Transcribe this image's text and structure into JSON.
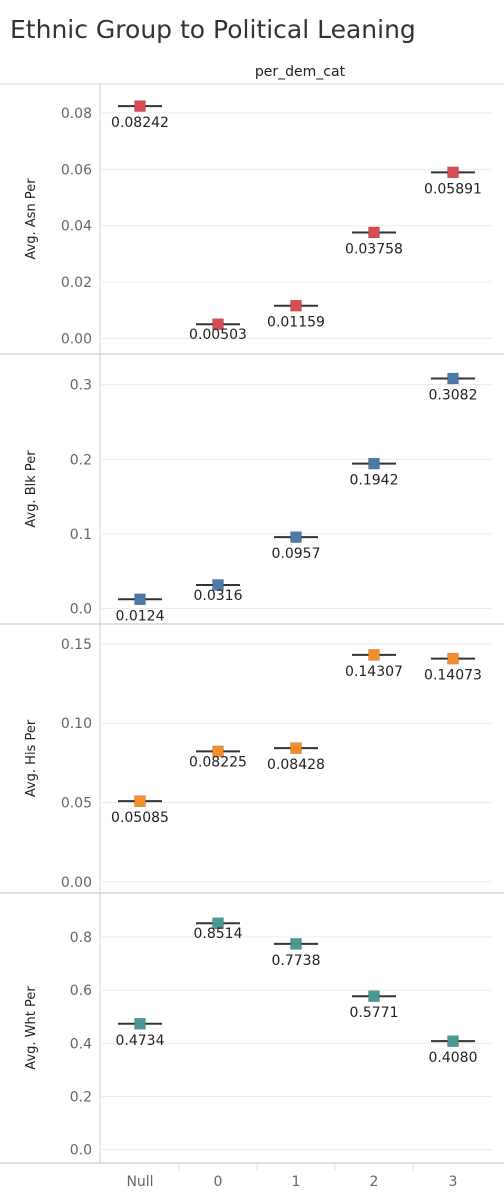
{
  "title": "Ethnic Group to Political Leaning",
  "column_header": "per_dem_cat",
  "chart_data": {
    "type": "scatter",
    "title": "Ethnic Group to Political Leaning",
    "column_header": "per_dem_cat",
    "categories": [
      "Null",
      "0",
      "1",
      "2",
      "3"
    ],
    "grid": true,
    "panels": [
      {
        "name": "Avg. Asn Per",
        "ylabel": "Avg. Asn Per",
        "color": "#d64e53",
        "ylim": [
          -0.002,
          0.086
        ],
        "yticks": [
          0.0,
          0.02,
          0.04,
          0.06,
          0.08
        ],
        "ytick_labels": [
          "0.00",
          "0.02",
          "0.04",
          "0.06",
          "0.08"
        ],
        "values": [
          0.08242,
          0.00503,
          0.01159,
          0.03758,
          0.05891
        ],
        "labels": [
          "0.08242",
          "0.00503",
          "0.01159",
          "0.03758",
          "0.05891"
        ]
      },
      {
        "name": "Avg. Blk Per",
        "ylabel": "Avg. Blk Per",
        "color": "#4e79a7",
        "ylim": [
          -0.01,
          0.325
        ],
        "yticks": [
          0.0,
          0.1,
          0.2,
          0.3
        ],
        "ytick_labels": [
          "0.0",
          "0.1",
          "0.2",
          "0.3"
        ],
        "values": [
          0.0124,
          0.0316,
          0.0957,
          0.1942,
          0.3082
        ],
        "labels": [
          "0.0124",
          "0.0316",
          "0.0957",
          "0.1942",
          "0.3082"
        ]
      },
      {
        "name": "Avg. His Per",
        "ylabel": "Avg. His Per",
        "color": "#f28e2b",
        "ylim": [
          -0.002,
          0.155
        ],
        "yticks": [
          0.0,
          0.05,
          0.1,
          0.15
        ],
        "ytick_labels": [
          "0.00",
          "0.05",
          "0.10",
          "0.15"
        ],
        "values": [
          0.05085,
          0.08225,
          0.08428,
          0.14307,
          0.14073
        ],
        "labels": [
          "0.05085",
          "0.08225",
          "0.08428",
          "0.14307",
          "0.14073"
        ]
      },
      {
        "name": "Avg. Wht Per",
        "ylabel": "Avg. Wht Per",
        "color": "#499894",
        "ylim": [
          -0.02,
          0.92
        ],
        "yticks": [
          0.0,
          0.2,
          0.4,
          0.6,
          0.8
        ],
        "ytick_labels": [
          "0.0",
          "0.2",
          "0.4",
          "0.6",
          "0.8"
        ],
        "values": [
          0.4734,
          0.8514,
          0.7738,
          0.5771,
          0.408
        ],
        "labels": [
          "0.4734",
          "0.8514",
          "0.7738",
          "0.5771",
          "0.4080"
        ]
      }
    ]
  }
}
